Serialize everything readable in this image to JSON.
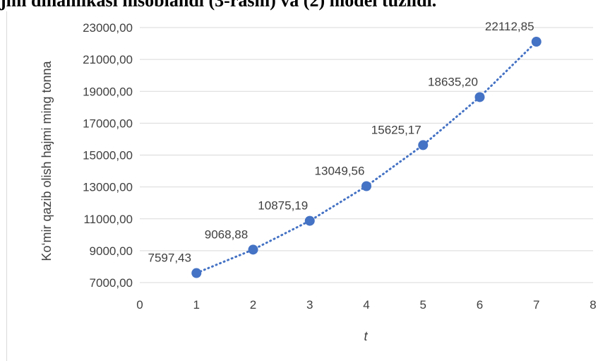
{
  "document": {
    "caption_fragment": "jmi dinamikasi hisoblandi (3-rasm) va (2) model tuzildi."
  },
  "chart_data": {
    "type": "scatter",
    "title": "",
    "xlabel": "t",
    "ylabel": "Ko‘mir qazib olish hajmi ming tonna",
    "xlim": [
      0,
      8
    ],
    "ylim": [
      7000,
      23000
    ],
    "x_ticks": [
      0,
      1,
      2,
      3,
      4,
      5,
      6,
      7,
      8
    ],
    "y_ticks": [
      7000,
      9000,
      11000,
      13000,
      15000,
      17000,
      19000,
      21000,
      23000
    ],
    "y_tick_labels": [
      "7000,00",
      "9000,00",
      "11000,00",
      "13000,00",
      "15000,00",
      "17000,00",
      "19000,00",
      "21000,00",
      "23000,00"
    ],
    "grid": "horizontal",
    "trendline": "dotted",
    "series": [
      {
        "color": "#4472c4",
        "x": [
          1,
          2,
          3,
          4,
          5,
          6,
          7
        ],
        "y": [
          7597.43,
          9068.88,
          10875.19,
          13049.56,
          15625.17,
          18635.2,
          22112.85
        ],
        "labels": [
          "7597,43",
          "9068,88",
          "10875,19",
          "13049,56",
          "15625,17",
          "18635,20",
          "22112,85"
        ]
      }
    ]
  }
}
